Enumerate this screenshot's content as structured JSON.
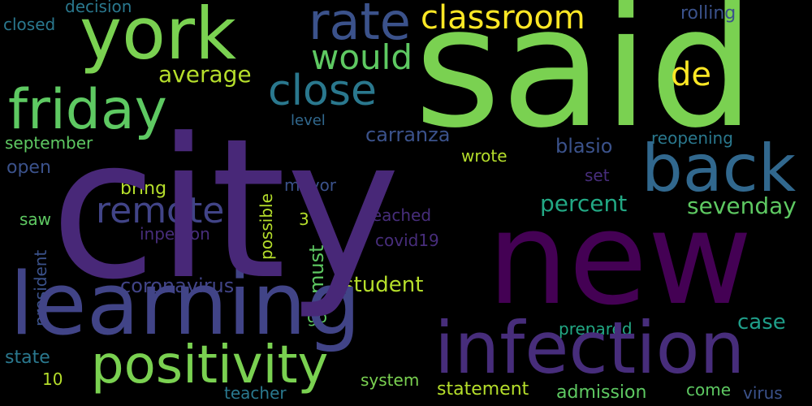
{
  "cloud": {
    "said": "said",
    "city": "city",
    "new": "new",
    "learning": "learning",
    "infection": "infection",
    "york": "york",
    "friday": "friday",
    "back": "back",
    "positivity": "positivity",
    "rate": "rate",
    "classroom": "classroom",
    "close": "close",
    "would": "would",
    "remote": "remote",
    "de": "de",
    "average": "average",
    "percent": "percent",
    "sevenday": "sevenday",
    "carranza": "carranza",
    "blasio": "blasio",
    "coronavirus": "coronavirus",
    "student": "student",
    "case": "case",
    "decision": "decision",
    "closed": "closed",
    "rolling": "rolling",
    "level": "level",
    "september": "september",
    "reopening": "reopening",
    "wrote": "wrote",
    "open": "open",
    "set": "set",
    "mayor": "mayor",
    "bring": "bring",
    "three": "3",
    "saw": "saw",
    "reached": "reached",
    "inperson": "inperson",
    "covid19": "covid19",
    "go": "go",
    "prepared": "prepared",
    "state": "state",
    "ten": "10",
    "system": "system",
    "teacher": "teacher",
    "statement": "statement",
    "admission": "admission",
    "come": "come",
    "virus": "virus",
    "possible": "possible",
    "must": "must",
    "president": "president"
  },
  "colors": {
    "background": "#000000",
    "purple_dark": "#440154",
    "purple": "#482878",
    "indigo": "#414487",
    "blue": "#3b528b",
    "steel": "#31688e",
    "teal": "#2a788e",
    "teal_green": "#22a884",
    "green": "#5ec962",
    "light_green": "#7ad151",
    "lime": "#b5de2b",
    "yellow": "#fde725"
  }
}
